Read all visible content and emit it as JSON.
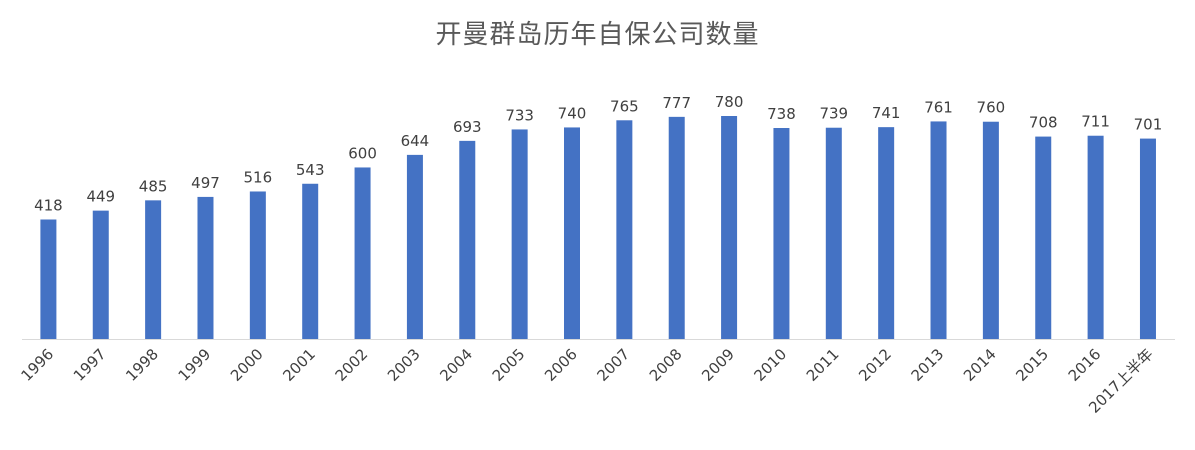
{
  "chart_data": {
    "type": "bar",
    "title": "开曼群岛历年自保公司数量",
    "xlabel": "",
    "ylabel": "",
    "categories": [
      "1996",
      "1997",
      "1998",
      "1999",
      "2000",
      "2001",
      "2002",
      "2003",
      "2004",
      "2005",
      "2006",
      "2007",
      "2008",
      "2009",
      "2010",
      "2011",
      "2012",
      "2013",
      "2014",
      "2015",
      "2016",
      "2017上半年"
    ],
    "values": [
      418,
      449,
      485,
      497,
      516,
      543,
      600,
      644,
      693,
      733,
      740,
      765,
      777,
      780,
      738,
      739,
      741,
      761,
      760,
      708,
      711,
      701
    ],
    "ylim": [
      0,
      780
    ],
    "grid": false,
    "legend": "none",
    "colors": {
      "bar": "#4472C4",
      "axis": "#D9D9D9",
      "text": "#404040",
      "title": "#595959"
    }
  }
}
